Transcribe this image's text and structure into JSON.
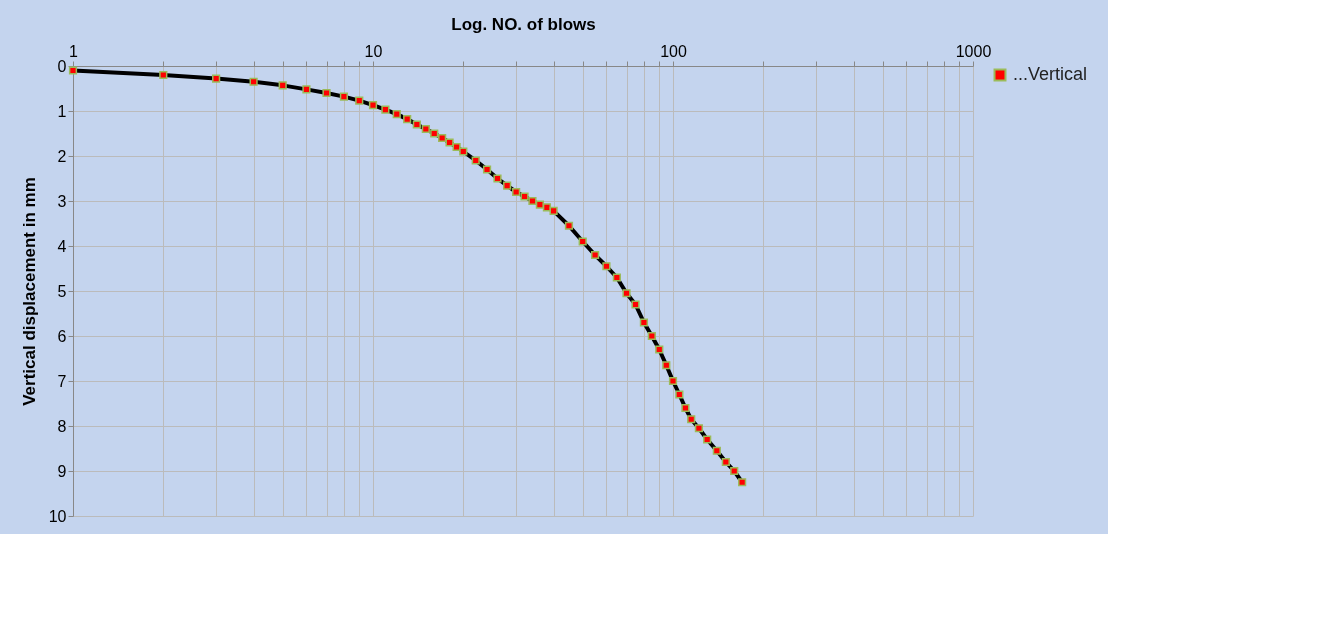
{
  "chart_data": {
    "type": "line",
    "xlabel": "Log. NO. of blows",
    "ylabel": "Vertical displacement in mm",
    "xlim": [
      1,
      1000
    ],
    "ylim": [
      10,
      0
    ],
    "log": "x",
    "xticks": [
      1,
      {
        "value": 2,
        "label": null
      },
      {
        "value": 3,
        "label": null
      },
      {
        "value": 4,
        "label": null
      },
      {
        "value": 5,
        "label": null
      },
      {
        "value": 6,
        "label": null
      },
      {
        "value": 7,
        "label": null
      },
      {
        "value": 8,
        "label": null
      },
      {
        "value": 9,
        "label": null
      },
      10,
      {
        "value": 20,
        "label": null
      },
      {
        "value": 30,
        "label": null
      },
      {
        "value": 40,
        "label": null
      },
      {
        "value": 50,
        "label": null
      },
      {
        "value": 60,
        "label": null
      },
      {
        "value": 70,
        "label": null
      },
      {
        "value": 80,
        "label": null
      },
      {
        "value": 90,
        "label": null
      },
      100,
      {
        "value": 200,
        "label": null
      },
      {
        "value": 300,
        "label": null
      },
      {
        "value": 400,
        "label": null
      },
      {
        "value": 500,
        "label": null
      },
      {
        "value": 600,
        "label": null
      },
      {
        "value": 700,
        "label": null
      },
      {
        "value": 800,
        "label": null
      },
      {
        "value": 900,
        "label": null
      },
      1000
    ],
    "yticks": [
      0,
      1,
      2,
      3,
      4,
      5,
      6,
      7,
      8,
      9,
      10
    ],
    "grid": true,
    "legend": "right",
    "marker": "square",
    "line_style": "solid",
    "series": [
      {
        "name": "...Vertical",
        "color": "#ff0000",
        "x": [
          1,
          2,
          3,
          4,
          5,
          6,
          7,
          8,
          9,
          10,
          11,
          12,
          13,
          14,
          15,
          16,
          17,
          18,
          19,
          20,
          22,
          24,
          26,
          28,
          30,
          32,
          34,
          36,
          38,
          40,
          45,
          50,
          55,
          60,
          65,
          70,
          75,
          80,
          85,
          90,
          95,
          100,
          105,
          110,
          115,
          122,
          130,
          140,
          150,
          160,
          170
        ],
        "values": [
          0.1,
          0.2,
          0.28,
          0.35,
          0.43,
          0.52,
          0.6,
          0.68,
          0.77,
          0.87,
          0.97,
          1.07,
          1.18,
          1.3,
          1.4,
          1.5,
          1.6,
          1.7,
          1.8,
          1.9,
          2.1,
          2.3,
          2.5,
          2.66,
          2.8,
          2.9,
          3.0,
          3.08,
          3.14,
          3.22,
          3.55,
          3.9,
          4.2,
          4.45,
          4.7,
          5.05,
          5.3,
          5.7,
          6.0,
          6.3,
          6.65,
          7.0,
          7.3,
          7.6,
          7.85,
          8.05,
          8.3,
          8.55,
          8.8,
          9.0,
          9.25
        ]
      }
    ]
  }
}
